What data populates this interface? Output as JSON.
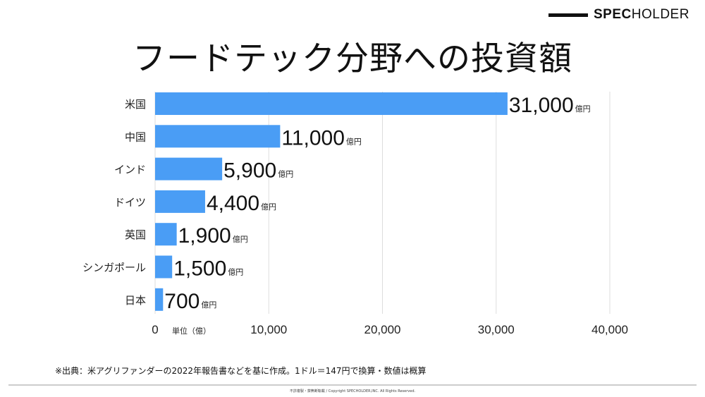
{
  "logo": {
    "bold": "SPEC",
    "light": "HOLDER"
  },
  "title": "フードテック分野への投資額",
  "chart_data": {
    "type": "bar",
    "orientation": "horizontal",
    "categories": [
      "米国",
      "中国",
      "インド",
      "ドイツ",
      "英国",
      "シンガポール",
      "日本"
    ],
    "values": [
      31000,
      11000,
      5900,
      4400,
      1900,
      1500,
      700
    ],
    "data_labels": [
      "31,000",
      "11,000",
      "5,900",
      "4,400",
      "1,900",
      "1,500",
      "700"
    ],
    "label_unit": "億円",
    "xlim": [
      0,
      40000
    ],
    "x_ticks": [
      0,
      10000,
      20000,
      30000,
      40000
    ],
    "x_tick_labels": [
      "0",
      "10,000",
      "20,000",
      "30,000",
      "40,000"
    ],
    "xlabel": "単位（億）",
    "grid": true,
    "bar_color": "#4a9df5"
  },
  "footnote": "※出典：米アグリファンダーの2022年報告書などを基に作成。1ドル＝147円で換算・数値は概算",
  "copyright": "不許複製・禁無断転載 / Copyright SPECHOLDER,INC. All Rights Reserved."
}
